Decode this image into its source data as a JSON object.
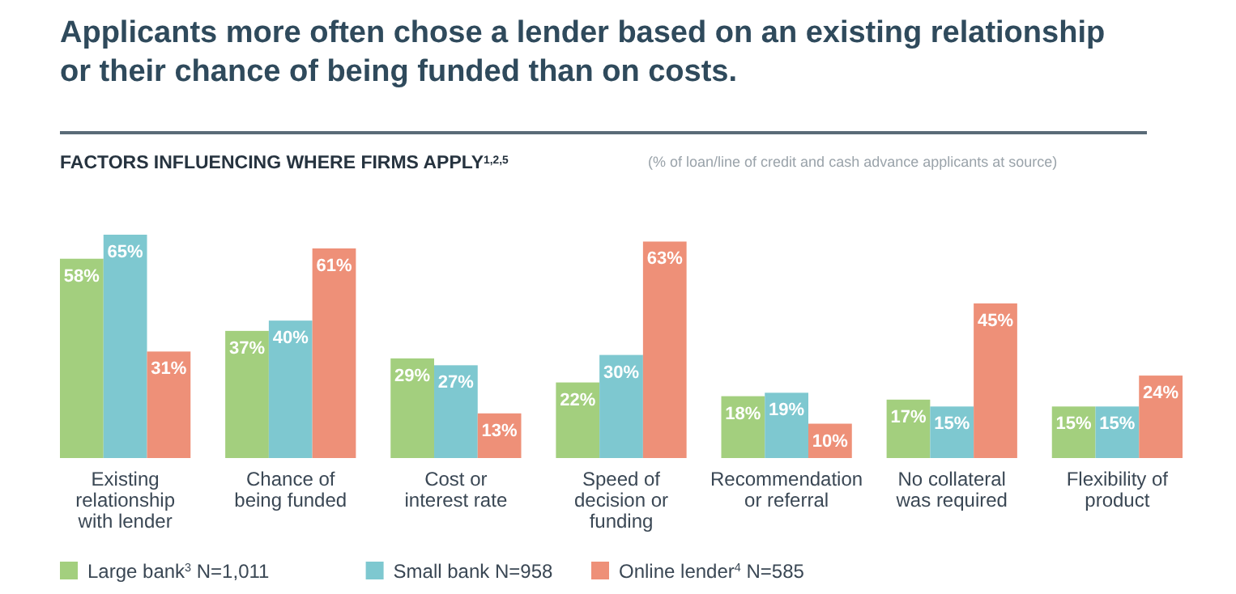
{
  "chart_data": {
    "type": "bar",
    "title": "Applicants more often chose a lender based on an existing relationship or their chance of being funded than on costs.",
    "subtitle": "FACTORS INFLUENCING WHERE FIRMS APPLY$^{1,2,5}$",
    "annotations": [
      "(% of loan/line of credit and cash advance applicants at source)"
    ],
    "categories": [
      "Existing relationship with lender",
      "Chance of being funded",
      "Cost or interest rate",
      "Speed of decision or funding",
      "Recommendation or referral",
      "No collateral was required",
      "Flexibility of product"
    ],
    "series": [
      {
        "name": "Large bank$^{3}$ N=1,011",
        "color": "#a3cf7e",
        "values": [
          58,
          37,
          29,
          22,
          18,
          17,
          15
        ],
        "value_labels": [
          "58%",
          "37%",
          "29%",
          "22%",
          "18%",
          "17%",
          "15%"
        ]
      },
      {
        "name": "Small bank N=958",
        "color": "#7ec8d0",
        "values": [
          65,
          40,
          27,
          30,
          19,
          15,
          15
        ],
        "value_labels": [
          "65%",
          "40%",
          "27%",
          "30%",
          "19%",
          "15%",
          "15%"
        ]
      },
      {
        "name": "Online lender$^{4}$ N=585",
        "color": "#ee9078",
        "values": [
          31,
          61,
          13,
          63,
          10,
          45,
          24
        ],
        "value_labels": [
          "31%",
          "61%",
          "13%",
          "63%",
          "10%",
          "45%",
          "24%"
        ]
      }
    ],
    "legend": "bottom left"
  }
}
